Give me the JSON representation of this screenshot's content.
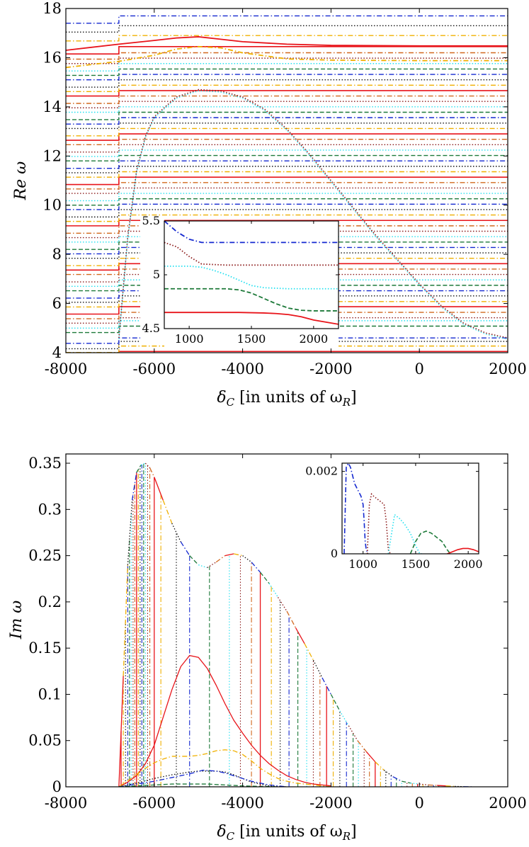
{
  "chart_data": [
    {
      "type": "line",
      "name": "top-panel-real-part",
      "xlabel_parts": [
        "δ",
        "C",
        " [in units of ω",
        "R",
        "]"
      ],
      "ylabel": "Re ω",
      "xlim": [
        -8000,
        2000
      ],
      "ylim": [
        4,
        18
      ],
      "xticks": [
        -8000,
        -6000,
        -4000,
        -2000,
        0,
        2000
      ],
      "xtick_labels": [
        "-8000",
        "-6000",
        "-4000",
        "-2000",
        "0",
        "2000"
      ],
      "yticks": [
        4,
        6,
        8,
        10,
        12,
        14,
        16,
        18
      ],
      "ytick_labels": [
        "4",
        "6",
        "8",
        "10",
        "12",
        "14",
        "16",
        "18"
      ],
      "band_levels_right": [
        4.05,
        4.27,
        4.46,
        4.6,
        5.08,
        5.3,
        5.42,
        5.64,
        5.87,
        6.08,
        6.31,
        6.52,
        6.74,
        6.96,
        7.18,
        7.4,
        7.62,
        7.84,
        8.06,
        8.28,
        8.5,
        8.72,
        8.94,
        9.16,
        9.38,
        9.6,
        9.82,
        10.04,
        10.26,
        10.48,
        10.7,
        10.92,
        11.14,
        11.36,
        11.58,
        11.8,
        12.02,
        12.24,
        12.46,
        12.68,
        12.9,
        13.12,
        13.34,
        13.56,
        13.78,
        14.0,
        14.22,
        14.44,
        14.66,
        14.88,
        15.1,
        15.32,
        15.54,
        15.76,
        15.98,
        16.2,
        16.45,
        16.9,
        17.3,
        17.7
      ],
      "step_at_x": -6800,
      "envelope_curve": {
        "x": [
          -6800,
          -6600,
          -6400,
          -6200,
          -6000,
          -5500,
          -5000,
          -4500,
          -4000,
          -3500,
          -3000,
          -2500,
          -2000,
          -1500,
          -1000,
          -500,
          0,
          500,
          1000,
          1500,
          2000
        ],
        "y": [
          4.6,
          8.7,
          11.4,
          12.8,
          13.6,
          14.4,
          14.7,
          14.65,
          14.4,
          13.9,
          13.1,
          12.1,
          11.0,
          9.9,
          8.8,
          7.8,
          6.8,
          5.9,
          5.2,
          4.8,
          4.6
        ]
      },
      "hump_curves": [
        {
          "color": "#e8141a",
          "style": "solid",
          "x": [
            -6800,
            -6000,
            -5500,
            -5000,
            -4500,
            -4000,
            -3000,
            -2000,
            0,
            2000
          ],
          "y": [
            16.55,
            16.7,
            16.8,
            16.85,
            16.75,
            16.65,
            16.55,
            16.5,
            16.48,
            16.48
          ]
        },
        {
          "color": "#f0b000",
          "style": "dashdot",
          "x": [
            -6800,
            -6000,
            -5500,
            -5000,
            -4500,
            -4000,
            -3000,
            -2000,
            0,
            2000
          ],
          "y": [
            15.85,
            16.1,
            16.35,
            16.45,
            16.4,
            16.2,
            15.95,
            15.9,
            15.88,
            15.88
          ]
        }
      ],
      "inset": {
        "xlim": [
          800,
          2200
        ],
        "ylim": [
          4.5,
          5.5
        ],
        "xticks": [
          1000,
          1500,
          2000
        ],
        "xtick_labels": [
          "1000",
          "1500",
          "2000"
        ],
        "yticks": [
          4.5,
          5,
          5.5
        ],
        "ytick_labels": [
          "4.5",
          "5",
          "5.5"
        ],
        "series": [
          {
            "color": "#1428d0",
            "style": "dashdot",
            "x": [
              800,
              900,
              1000,
              1100,
              1300,
              1600,
              2000,
              2200
            ],
            "y": [
              5.5,
              5.4,
              5.33,
              5.3,
              5.3,
              5.3,
              5.3,
              5.3
            ]
          },
          {
            "color": "#8b1a1a",
            "style": "dotted",
            "x": [
              800,
              900,
              1000,
              1100,
              1300,
              1600,
              2000,
              2200
            ],
            "y": [
              5.3,
              5.26,
              5.17,
              5.1,
              5.09,
              5.09,
              5.09,
              5.09
            ]
          },
          {
            "color": "#20e0f0",
            "style": "dotted",
            "x": [
              800,
              1000,
              1100,
              1200,
              1300,
              1400,
              1500,
              1600,
              1800,
              2000,
              2200
            ],
            "y": [
              5.08,
              5.08,
              5.07,
              5.04,
              5.0,
              4.95,
              4.9,
              4.88,
              4.87,
              4.87,
              4.87
            ]
          },
          {
            "color": "#1e7a3a",
            "style": "dashed",
            "x": [
              800,
              1000,
              1300,
              1400,
              1500,
              1600,
              1700,
              1800,
              1900,
              2000,
              2200
            ],
            "y": [
              4.87,
              4.87,
              4.87,
              4.86,
              4.83,
              4.78,
              4.73,
              4.69,
              4.67,
              4.665,
              4.665
            ]
          },
          {
            "color": "#e8141a",
            "style": "solid",
            "x": [
              800,
              1000,
              1200,
              1400,
              1600,
              1700,
              1800,
              1900,
              2000,
              2100,
              2200
            ],
            "y": [
              4.65,
              4.65,
              4.65,
              4.65,
              4.645,
              4.64,
              4.63,
              4.61,
              4.58,
              4.56,
              4.54
            ]
          }
        ]
      }
    },
    {
      "type": "line",
      "name": "bottom-panel-imaginary-part",
      "xlabel_parts": [
        "δ",
        "C",
        " [in units of ω",
        "R",
        "]"
      ],
      "ylabel": "Im ω",
      "xlim": [
        -8000,
        2000
      ],
      "ylim": [
        0,
        0.36
      ],
      "xticks": [
        -8000,
        -6000,
        -4000,
        -2000,
        0,
        2000
      ],
      "xtick_labels": [
        "-8000",
        "-6000",
        "-4000",
        "-2000",
        "0",
        "2000"
      ],
      "yticks": [
        0,
        0.05,
        0.1,
        0.15,
        0.2,
        0.25,
        0.3,
        0.35
      ],
      "ytick_labels": [
        "0",
        "0.05",
        "0.1",
        "0.15",
        "0.2",
        "0.25",
        "0.3",
        "0.35"
      ],
      "envelope_curve": {
        "x": [
          -6800,
          -6700,
          -6600,
          -6500,
          -6400,
          -6300,
          -6200,
          -6100,
          -6000,
          -5800,
          -5600,
          -5400,
          -5200,
          -5000,
          -4800,
          -4600,
          -4400,
          -4200,
          -4000,
          -3800,
          -3600,
          -3400,
          -3200,
          -3000,
          -2800,
          -2600,
          -2400,
          -2200,
          -2000,
          -1800,
          -1600,
          -1400,
          -1200,
          -1000,
          -800,
          -600,
          -400,
          -200,
          0,
          200,
          400,
          600,
          800,
          1000,
          1200
        ],
        "y": [
          0.0,
          0.12,
          0.24,
          0.31,
          0.34,
          0.348,
          0.35,
          0.345,
          0.335,
          0.31,
          0.285,
          0.265,
          0.25,
          0.24,
          0.237,
          0.243,
          0.25,
          0.252,
          0.25,
          0.243,
          0.232,
          0.22,
          0.205,
          0.19,
          0.172,
          0.155,
          0.137,
          0.118,
          0.1,
          0.082,
          0.066,
          0.05,
          0.038,
          0.027,
          0.018,
          0.011,
          0.006,
          0.004,
          0.003,
          0.002,
          0.0015,
          0.001,
          0.0005,
          0.0002,
          0.0
        ]
      },
      "spike_x": [
        -6750,
        -6700,
        -6650,
        -6600,
        -6560,
        -6520,
        -6480,
        -6440,
        -6400,
        -6360,
        -6320,
        -6280,
        -6240,
        -6200,
        -6150,
        -6100,
        -6000,
        -5850,
        -5500,
        -5200,
        -4750,
        -4300,
        -4050,
        -3800,
        -3600,
        -3350,
        -3150,
        -2950,
        -2750,
        -2550,
        -2400,
        -2250,
        -2100,
        -1950,
        -1800,
        -1650,
        -1500,
        -1380,
        -1250,
        -1130,
        -1000,
        -880,
        -760,
        -640,
        -520,
        -400,
        -280,
        -160,
        -40,
        80,
        200,
        320,
        440
      ],
      "low_curves": [
        {
          "color": "#e8141a",
          "style": "solid",
          "x": [
            -6800,
            -6600,
            -6400,
            -6200,
            -6000,
            -5800,
            -5600,
            -5400,
            -5200,
            -5000,
            -4800,
            -4600,
            -4400,
            -4200,
            -4000,
            -3800,
            -3600,
            -3400,
            -3200,
            -3000,
            -2800,
            -2600,
            -2400,
            -2200,
            -2000
          ],
          "y": [
            0.0,
            0.005,
            0.012,
            0.025,
            0.045,
            0.075,
            0.105,
            0.13,
            0.142,
            0.14,
            0.128,
            0.11,
            0.09,
            0.072,
            0.058,
            0.045,
            0.034,
            0.025,
            0.018,
            0.012,
            0.008,
            0.005,
            0.003,
            0.002,
            0.001
          ]
        },
        {
          "color": "#f0b000",
          "style": "dashdot",
          "x": [
            -6800,
            -6500,
            -6200,
            -6000,
            -5800,
            -5600,
            -5400,
            -5200,
            -5000,
            -4800,
            -4600,
            -4400,
            -4200,
            -4000,
            -3800,
            -3600,
            -3400,
            -3200,
            -3000,
            -2800,
            -2600,
            -2400,
            -2200,
            -2000
          ],
          "y": [
            0.0,
            0.01,
            0.02,
            0.026,
            0.03,
            0.033,
            0.033,
            0.033,
            0.034,
            0.036,
            0.039,
            0.04,
            0.039,
            0.035,
            0.028,
            0.02,
            0.014,
            0.009,
            0.006,
            0.004,
            0.003,
            0.002,
            0.001,
            0.0
          ]
        },
        {
          "color": "#111111",
          "style": "dotted",
          "x": [
            -6800,
            -6400,
            -6000,
            -5600,
            -5200,
            -5000,
            -4800,
            -4600,
            -4400,
            -4200,
            -4000,
            -3800,
            -3600,
            -3400,
            -3200,
            -3000
          ],
          "y": [
            0.0,
            0.004,
            0.009,
            0.013,
            0.016,
            0.017,
            0.017,
            0.017,
            0.016,
            0.013,
            0.009,
            0.005,
            0.003,
            0.001,
            0.0005,
            0.0
          ]
        },
        {
          "color": "#1428d0",
          "style": "dashdot",
          "x": [
            -6800,
            -6400,
            -6000,
            -5600,
            -5200,
            -4900,
            -4600,
            -4400,
            -4200,
            -4000,
            -3800,
            -3600,
            -3400,
            -3200,
            -3000
          ],
          "y": [
            0.0,
            0.003,
            0.006,
            0.01,
            0.014,
            0.018,
            0.017,
            0.015,
            0.012,
            0.009,
            0.006,
            0.004,
            0.002,
            0.001,
            0.0
          ]
        },
        {
          "color": "#1e7a3a",
          "style": "dashed",
          "x": [
            -6800,
            -6400,
            -6000,
            -5600,
            -5200,
            -4800,
            -4400,
            -4000,
            -3600,
            -3200
          ],
          "y": [
            0.0,
            0.001,
            0.002,
            0.003,
            0.003,
            0.003,
            0.002,
            0.001,
            0.0005,
            0.0
          ]
        }
      ],
      "inset": {
        "xlim": [
          800,
          2100
        ],
        "ylim": [
          0,
          0.0022
        ],
        "xticks": [
          1000,
          1500,
          2000
        ],
        "xtick_labels": [
          "1000",
          "1500",
          "2000"
        ],
        "yticks": [
          0,
          0.002
        ],
        "ytick_labels": [
          "0",
          "0.002"
        ],
        "series": [
          {
            "color": "#1428d0",
            "style": "dashdot",
            "x": [
              820,
              840,
              860,
              880,
              900,
              920,
              940,
              960,
              980,
              1000,
              1010,
              1020,
              1030,
              1050
            ],
            "y": [
              0.0,
              0.0021,
              0.0022,
              0.0021,
              0.0019,
              0.0017,
              0.0016,
              0.0015,
              0.0014,
              0.0012,
              0.0008,
              0.0003,
              0.0001,
              0.0
            ]
          },
          {
            "color": "#8b1a1a",
            "style": "dotted",
            "x": [
              1040,
              1060,
              1080,
              1100,
              1150,
              1200,
              1220,
              1240,
              1260
            ],
            "y": [
              0.0,
              0.0012,
              0.00145,
              0.0014,
              0.0013,
              0.0012,
              0.0008,
              0.0001,
              0.0
            ]
          },
          {
            "color": "#20e0f0",
            "style": "dotted",
            "x": [
              1240,
              1300,
              1350,
              1400,
              1450,
              1500,
              1520,
              1540,
              1560
            ],
            "y": [
              0.0,
              0.00095,
              0.00085,
              0.0007,
              0.0005,
              0.0002,
              0.0001,
              0.0,
              0.0
            ]
          },
          {
            "color": "#1e7a3a",
            "style": "dashed",
            "x": [
              1450,
              1500,
              1550,
              1600,
              1650,
              1700,
              1750,
              1800,
              1830
            ],
            "y": [
              0.0,
              0.0003,
              0.0005,
              0.00055,
              0.0005,
              0.0004,
              0.0003,
              0.0001,
              0.0
            ]
          },
          {
            "color": "#e8141a",
            "style": "solid",
            "x": [
              1800,
              1850,
              1900,
              1950,
              2000,
              2050,
              2100
            ],
            "y": [
              0.0,
              5e-05,
              0.0001,
              0.00013,
              0.00013,
              0.0001,
              5e-05
            ]
          }
        ]
      }
    }
  ],
  "style_cycle": [
    {
      "color": "#e8141a",
      "style": "solid"
    },
    {
      "color": "#f0b000",
      "style": "dashdot"
    },
    {
      "color": "#111111",
      "style": "dotted"
    },
    {
      "color": "#1428d0",
      "style": "dashdot"
    },
    {
      "color": "#1e7a3a",
      "style": "dashed"
    },
    {
      "color": "#20e0f0",
      "style": "dotted"
    },
    {
      "color": "#8b1a1a",
      "style": "dotted"
    },
    {
      "color": "#d2691e",
      "style": "dashdot"
    }
  ]
}
